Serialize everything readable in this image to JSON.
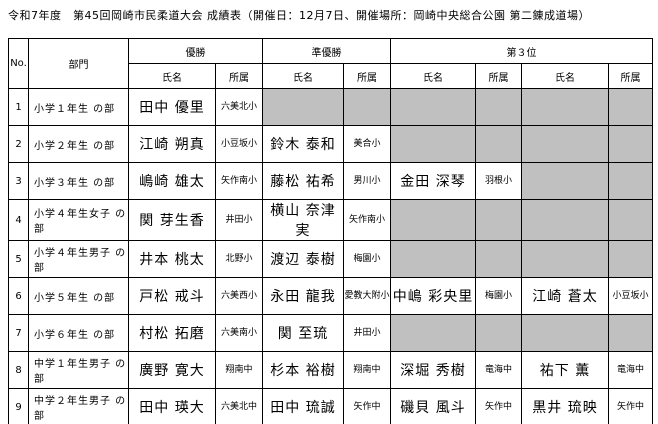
{
  "title": "令和7年度　第45回岡崎市民柔道大会 成績表（開催日：12月7日、開催場所：岡崎中央総合公園 第二錬成道場）",
  "table": {
    "headers": {
      "no": "No.",
      "division": "部門",
      "first_place": "優勝",
      "second_place": "準優勝",
      "third_place": "第３位",
      "name": "氏名",
      "affiliation": "所属"
    },
    "empty_cell_color": "#c0c0c0",
    "rows": [
      {
        "no": "1",
        "division": "小学１年生 の部",
        "cells": [
          "田中 優里",
          "六美北小",
          "",
          "",
          "",
          "",
          "",
          ""
        ]
      },
      {
        "no": "2",
        "division": "小学２年生 の部",
        "cells": [
          "江崎 朔真",
          "小豆坂小",
          "鈴木 泰和",
          "美合小",
          "",
          "",
          "",
          ""
        ]
      },
      {
        "no": "3",
        "division": "小学３年生 の部",
        "cells": [
          "嶋崎 雄太",
          "矢作南小",
          "藤松 祐希",
          "男川小",
          "金田 深琴",
          "羽根小",
          "",
          ""
        ]
      },
      {
        "no": "4",
        "division": "小学４年生女子 の部",
        "cells": [
          "関 芽生香",
          "井田小",
          "横山 奈津実",
          "矢作南小",
          "",
          "",
          "",
          ""
        ]
      },
      {
        "no": "5",
        "division": "小学４年生男子 の部",
        "cells": [
          "井本 桃太",
          "北野小",
          "渡辺 泰樹",
          "梅園小",
          "",
          "",
          "",
          ""
        ]
      },
      {
        "no": "6",
        "division": "小学５年生 の部",
        "cells": [
          "戸松 戒斗",
          "六美西小",
          "永田 龍我",
          "愛教大附小",
          "中嶋 彩央里",
          "梅園小",
          "江崎 蒼太",
          "小豆坂小"
        ]
      },
      {
        "no": "7",
        "division": "小学６年生 の部",
        "cells": [
          "村松 拓磨",
          "六美南小",
          "関 至琉",
          "井田小",
          "",
          "",
          "",
          ""
        ]
      },
      {
        "no": "8",
        "division": "中学１年生男子 の部",
        "cells": [
          "廣野 寛大",
          "翔南中",
          "杉本 裕樹",
          "翔南中",
          "深堀 秀樹",
          "竜海中",
          "祐下 薫",
          "竜海中"
        ]
      },
      {
        "no": "9",
        "division": "中学２年生男子 の部",
        "cells": [
          "田中 瑛大",
          "六美北中",
          "田中 琉誠",
          "矢作中",
          "磯貝 風斗",
          "矢作中",
          "黒井 琉映",
          "矢作中"
        ]
      }
    ]
  }
}
